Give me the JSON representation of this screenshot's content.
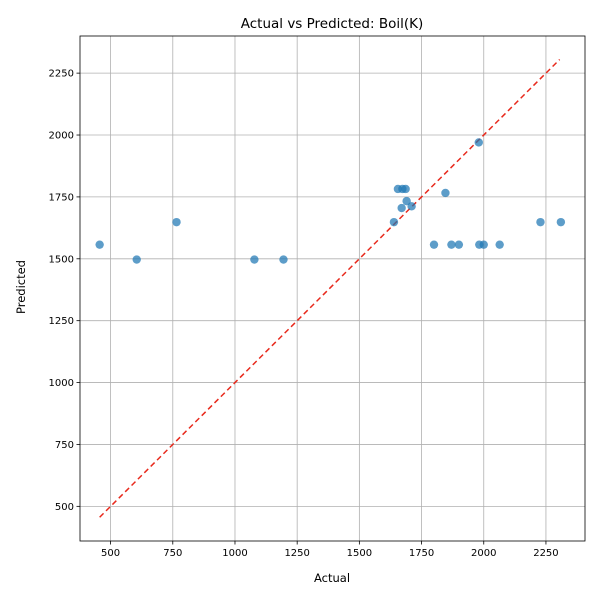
{
  "chart_data": {
    "type": "scatter",
    "title": "Actual vs Predicted: Boil(K)",
    "xlabel": "Actual",
    "ylabel": "Predicted",
    "xlim": [
      377,
      2407
    ],
    "ylim": [
      360,
      2400
    ],
    "xticks": [
      500,
      750,
      1000,
      1250,
      1500,
      1750,
      2000,
      2250
    ],
    "yticks": [
      500,
      750,
      1000,
      1250,
      1500,
      1750,
      2000,
      2250
    ],
    "grid": true,
    "reference_line": {
      "from": [
        456,
        456
      ],
      "to": [
        2305,
        2305
      ],
      "style": "dashed",
      "color": "#e8291c"
    },
    "points": [
      {
        "x": 456,
        "y": 1557
      },
      {
        "x": 605,
        "y": 1497
      },
      {
        "x": 765,
        "y": 1648
      },
      {
        "x": 1078,
        "y": 1497
      },
      {
        "x": 1195,
        "y": 1497
      },
      {
        "x": 1639,
        "y": 1648
      },
      {
        "x": 1655,
        "y": 1782
      },
      {
        "x": 1670,
        "y": 1705
      },
      {
        "x": 1673,
        "y": 1782
      },
      {
        "x": 1686,
        "y": 1782
      },
      {
        "x": 1690,
        "y": 1733
      },
      {
        "x": 1710,
        "y": 1712
      },
      {
        "x": 1800,
        "y": 1557
      },
      {
        "x": 1846,
        "y": 1766
      },
      {
        "x": 1870,
        "y": 1557
      },
      {
        "x": 1900,
        "y": 1557
      },
      {
        "x": 1980,
        "y": 1970
      },
      {
        "x": 1982,
        "y": 1557
      },
      {
        "x": 2000,
        "y": 1557
      },
      {
        "x": 2064,
        "y": 1557
      },
      {
        "x": 2228,
        "y": 1648
      },
      {
        "x": 2310,
        "y": 1648
      }
    ],
    "marker_color": "#1f77b4"
  }
}
